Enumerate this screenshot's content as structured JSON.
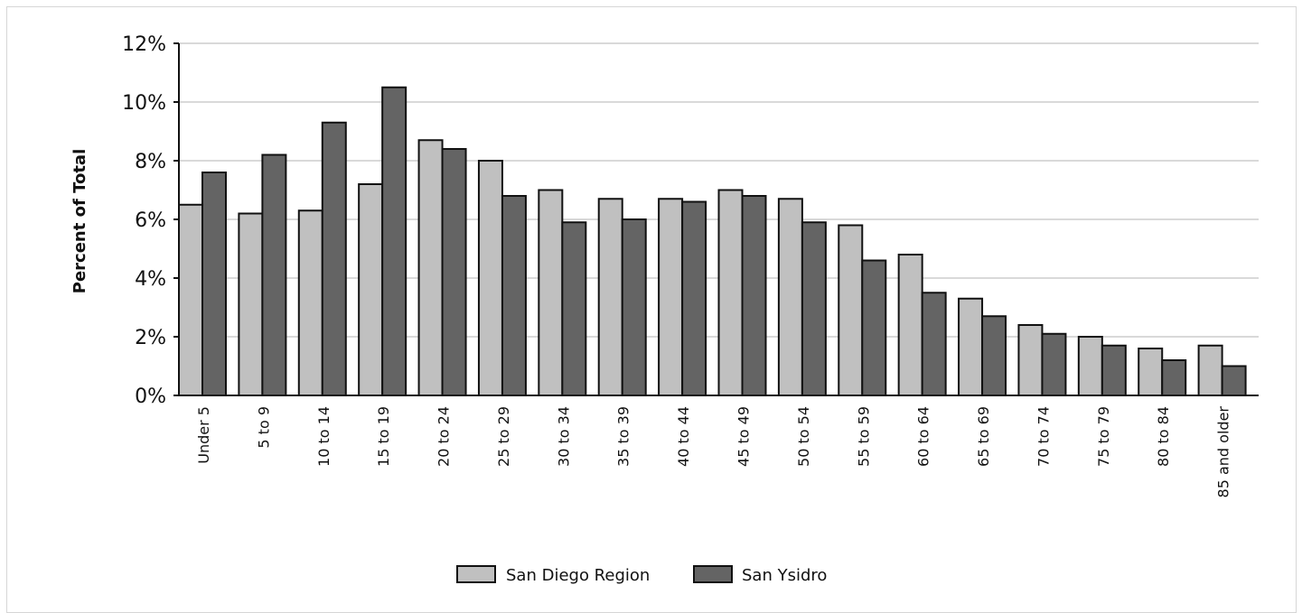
{
  "chart_data": {
    "type": "bar",
    "title": "",
    "xlabel": "",
    "ylabel": "Percent of Total",
    "ylim": [
      0,
      12
    ],
    "yticks": [
      "0%",
      "2%",
      "4%",
      "6%",
      "8%",
      "10%",
      "12%"
    ],
    "grid": true,
    "legend_position": "bottom",
    "categories": [
      "Under 5",
      "5 to 9",
      "10 to 14",
      "15 to 19",
      "20 to 24",
      "25 to 29",
      "30 to 34",
      "35 to 39",
      "40 to 44",
      "45 to 49",
      "50 to 54",
      "55 to 59",
      "60 to 64",
      "65 to 69",
      "70 to 74",
      "75 to 79",
      "80 to 84",
      "85 and older"
    ],
    "series": [
      {
        "name": "San Diego Region",
        "color": "#c0c0c0",
        "values": [
          6.5,
          6.2,
          6.3,
          7.2,
          8.7,
          8.0,
          7.0,
          6.7,
          6.7,
          7.0,
          6.7,
          5.8,
          4.8,
          3.3,
          2.4,
          2.0,
          1.6,
          1.7
        ]
      },
      {
        "name": "San Ysidro",
        "color": "#646464",
        "values": [
          7.6,
          8.2,
          9.3,
          10.5,
          8.4,
          6.8,
          5.9,
          6.0,
          6.6,
          6.8,
          5.9,
          4.6,
          3.5,
          2.7,
          2.1,
          1.7,
          1.2,
          1.0
        ]
      }
    ]
  }
}
